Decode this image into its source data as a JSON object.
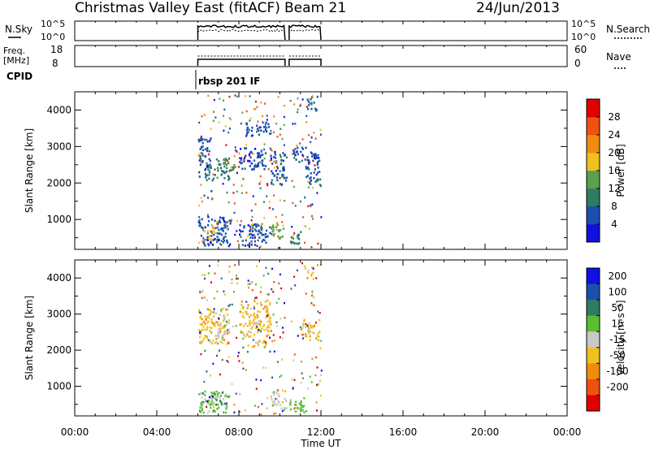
{
  "header": {
    "title": "Christmas Valley East (fitACF)",
    "beam": "Beam 21",
    "date": "24/Jun/2013"
  },
  "panels": {
    "nsky": {
      "left_label": "N.Sky",
      "right_label": "N.Search",
      "ticks": [
        "10^5",
        "10^0"
      ]
    },
    "freq": {
      "left_label_1": "Freq.",
      "left_label_2": "[MHz]",
      "left_ticks": [
        "18",
        "8"
      ],
      "right_ticks": [
        "60",
        "0"
      ],
      "right_label": "Nave"
    },
    "cpid": {
      "label": "CPID",
      "program": "rbsp 201 IF"
    }
  },
  "chart_data": [
    {
      "type": "heatmap",
      "name": "Power",
      "ylabel": "Slant Range [km]",
      "xlabel": "",
      "xlim_hours": [
        0,
        24
      ],
      "ylim": [
        180,
        4500
      ],
      "yticks": [
        1000,
        2000,
        3000,
        4000
      ],
      "colorbar": {
        "label": "Power [dB]",
        "ticks": [
          4,
          8,
          12,
          16,
          20,
          24,
          28
        ],
        "range": [
          0,
          32
        ],
        "colors": [
          "#1010e0",
          "#1a4fb0",
          "#2e7d62",
          "#5aa050",
          "#f0c020",
          "#f08c10",
          "#f05010",
          "#e00000"
        ]
      },
      "clusters": [
        {
          "t": [
            6.0,
            6.6
          ],
          "r": [
            2200,
            3300
          ],
          "level": 1
        },
        {
          "t": [
            6.3,
            7.5
          ],
          "r": [
            2100,
            2700
          ],
          "level": 2
        },
        {
          "t": [
            6.0,
            7.6
          ],
          "r": [
            300,
            1100
          ],
          "level": 1
        },
        {
          "t": [
            6.2,
            6.8
          ],
          "r": [
            400,
            800
          ],
          "level": 4
        },
        {
          "t": [
            7.2,
            7.8
          ],
          "r": [
            2350,
            2600
          ],
          "level": 3
        },
        {
          "t": [
            8.0,
            9.3
          ],
          "r": [
            2400,
            3000
          ],
          "level": 1
        },
        {
          "t": [
            8.3,
            9.5
          ],
          "r": [
            3300,
            3700
          ],
          "level": 1
        },
        {
          "t": [
            8.0,
            9.5
          ],
          "r": [
            300,
            900
          ],
          "level": 1
        },
        {
          "t": [
            9.5,
            10.2
          ],
          "r": [
            500,
            900
          ],
          "level": 3
        },
        {
          "t": [
            9.5,
            10.3
          ],
          "r": [
            2000,
            2900
          ],
          "level": 1
        },
        {
          "t": [
            10.4,
            11.0
          ],
          "r": [
            300,
            700
          ],
          "level": 2
        },
        {
          "t": [
            10.6,
            11.3
          ],
          "r": [
            2600,
            3000
          ],
          "level": 1
        },
        {
          "t": [
            11.2,
            11.9
          ],
          "r": [
            2000,
            2900
          ],
          "level": 1
        },
        {
          "t": [
            11.7,
            12.0
          ],
          "r": [
            1900,
            2200
          ],
          "level": 2
        },
        {
          "t": [
            11.3,
            11.8
          ],
          "r": [
            4000,
            4400
          ],
          "level": 1
        }
      ]
    },
    {
      "type": "heatmap",
      "name": "Velocity",
      "ylabel": "Slant Range [km]",
      "xlabel": "Time UT",
      "xlim_hours": [
        0,
        24
      ],
      "xticks": [
        "00:00",
        "04:00",
        "08:00",
        "12:00",
        "16:00",
        "20:00",
        "00:00"
      ],
      "ylim": [
        180,
        4500
      ],
      "yticks": [
        1000,
        2000,
        3000,
        4000
      ],
      "colorbar": {
        "label": "Velocity [m s⁻¹]",
        "ticks": [
          "200",
          "100",
          "50",
          "15",
          "-15",
          "-50",
          "-100",
          "-200"
        ],
        "colors": [
          "#1010e0",
          "#1a4fb0",
          "#2e7d62",
          "#58c030",
          "#c8c8c8",
          "#f0c020",
          "#f08c10",
          "#f05010",
          "#e00000"
        ]
      },
      "clusters": [
        {
          "t": [
            6.0,
            7.5
          ],
          "r": [
            2200,
            3200
          ],
          "level": 5
        },
        {
          "t": [
            6.8,
            7.5
          ],
          "r": [
            2400,
            2800
          ],
          "level": 4
        },
        {
          "t": [
            6.0,
            7.5
          ],
          "r": [
            300,
            900
          ],
          "level": 3
        },
        {
          "t": [
            6.3,
            7.0
          ],
          "r": [
            500,
            800
          ],
          "level": 4
        },
        {
          "t": [
            8.0,
            9.5
          ],
          "r": [
            2400,
            3400
          ],
          "level": 5
        },
        {
          "t": [
            8.4,
            9.3
          ],
          "r": [
            2100,
            2300
          ],
          "level": 5
        },
        {
          "t": [
            9.5,
            10.3
          ],
          "r": [
            400,
            900
          ],
          "level": 4
        },
        {
          "t": [
            10.4,
            11.3
          ],
          "r": [
            300,
            700
          ],
          "level": 3
        },
        {
          "t": [
            11.0,
            11.9
          ],
          "r": [
            2300,
            2900
          ],
          "level": 5
        },
        {
          "t": [
            11.2,
            11.6
          ],
          "r": [
            4000,
            4400
          ],
          "level": 5
        }
      ]
    }
  ]
}
